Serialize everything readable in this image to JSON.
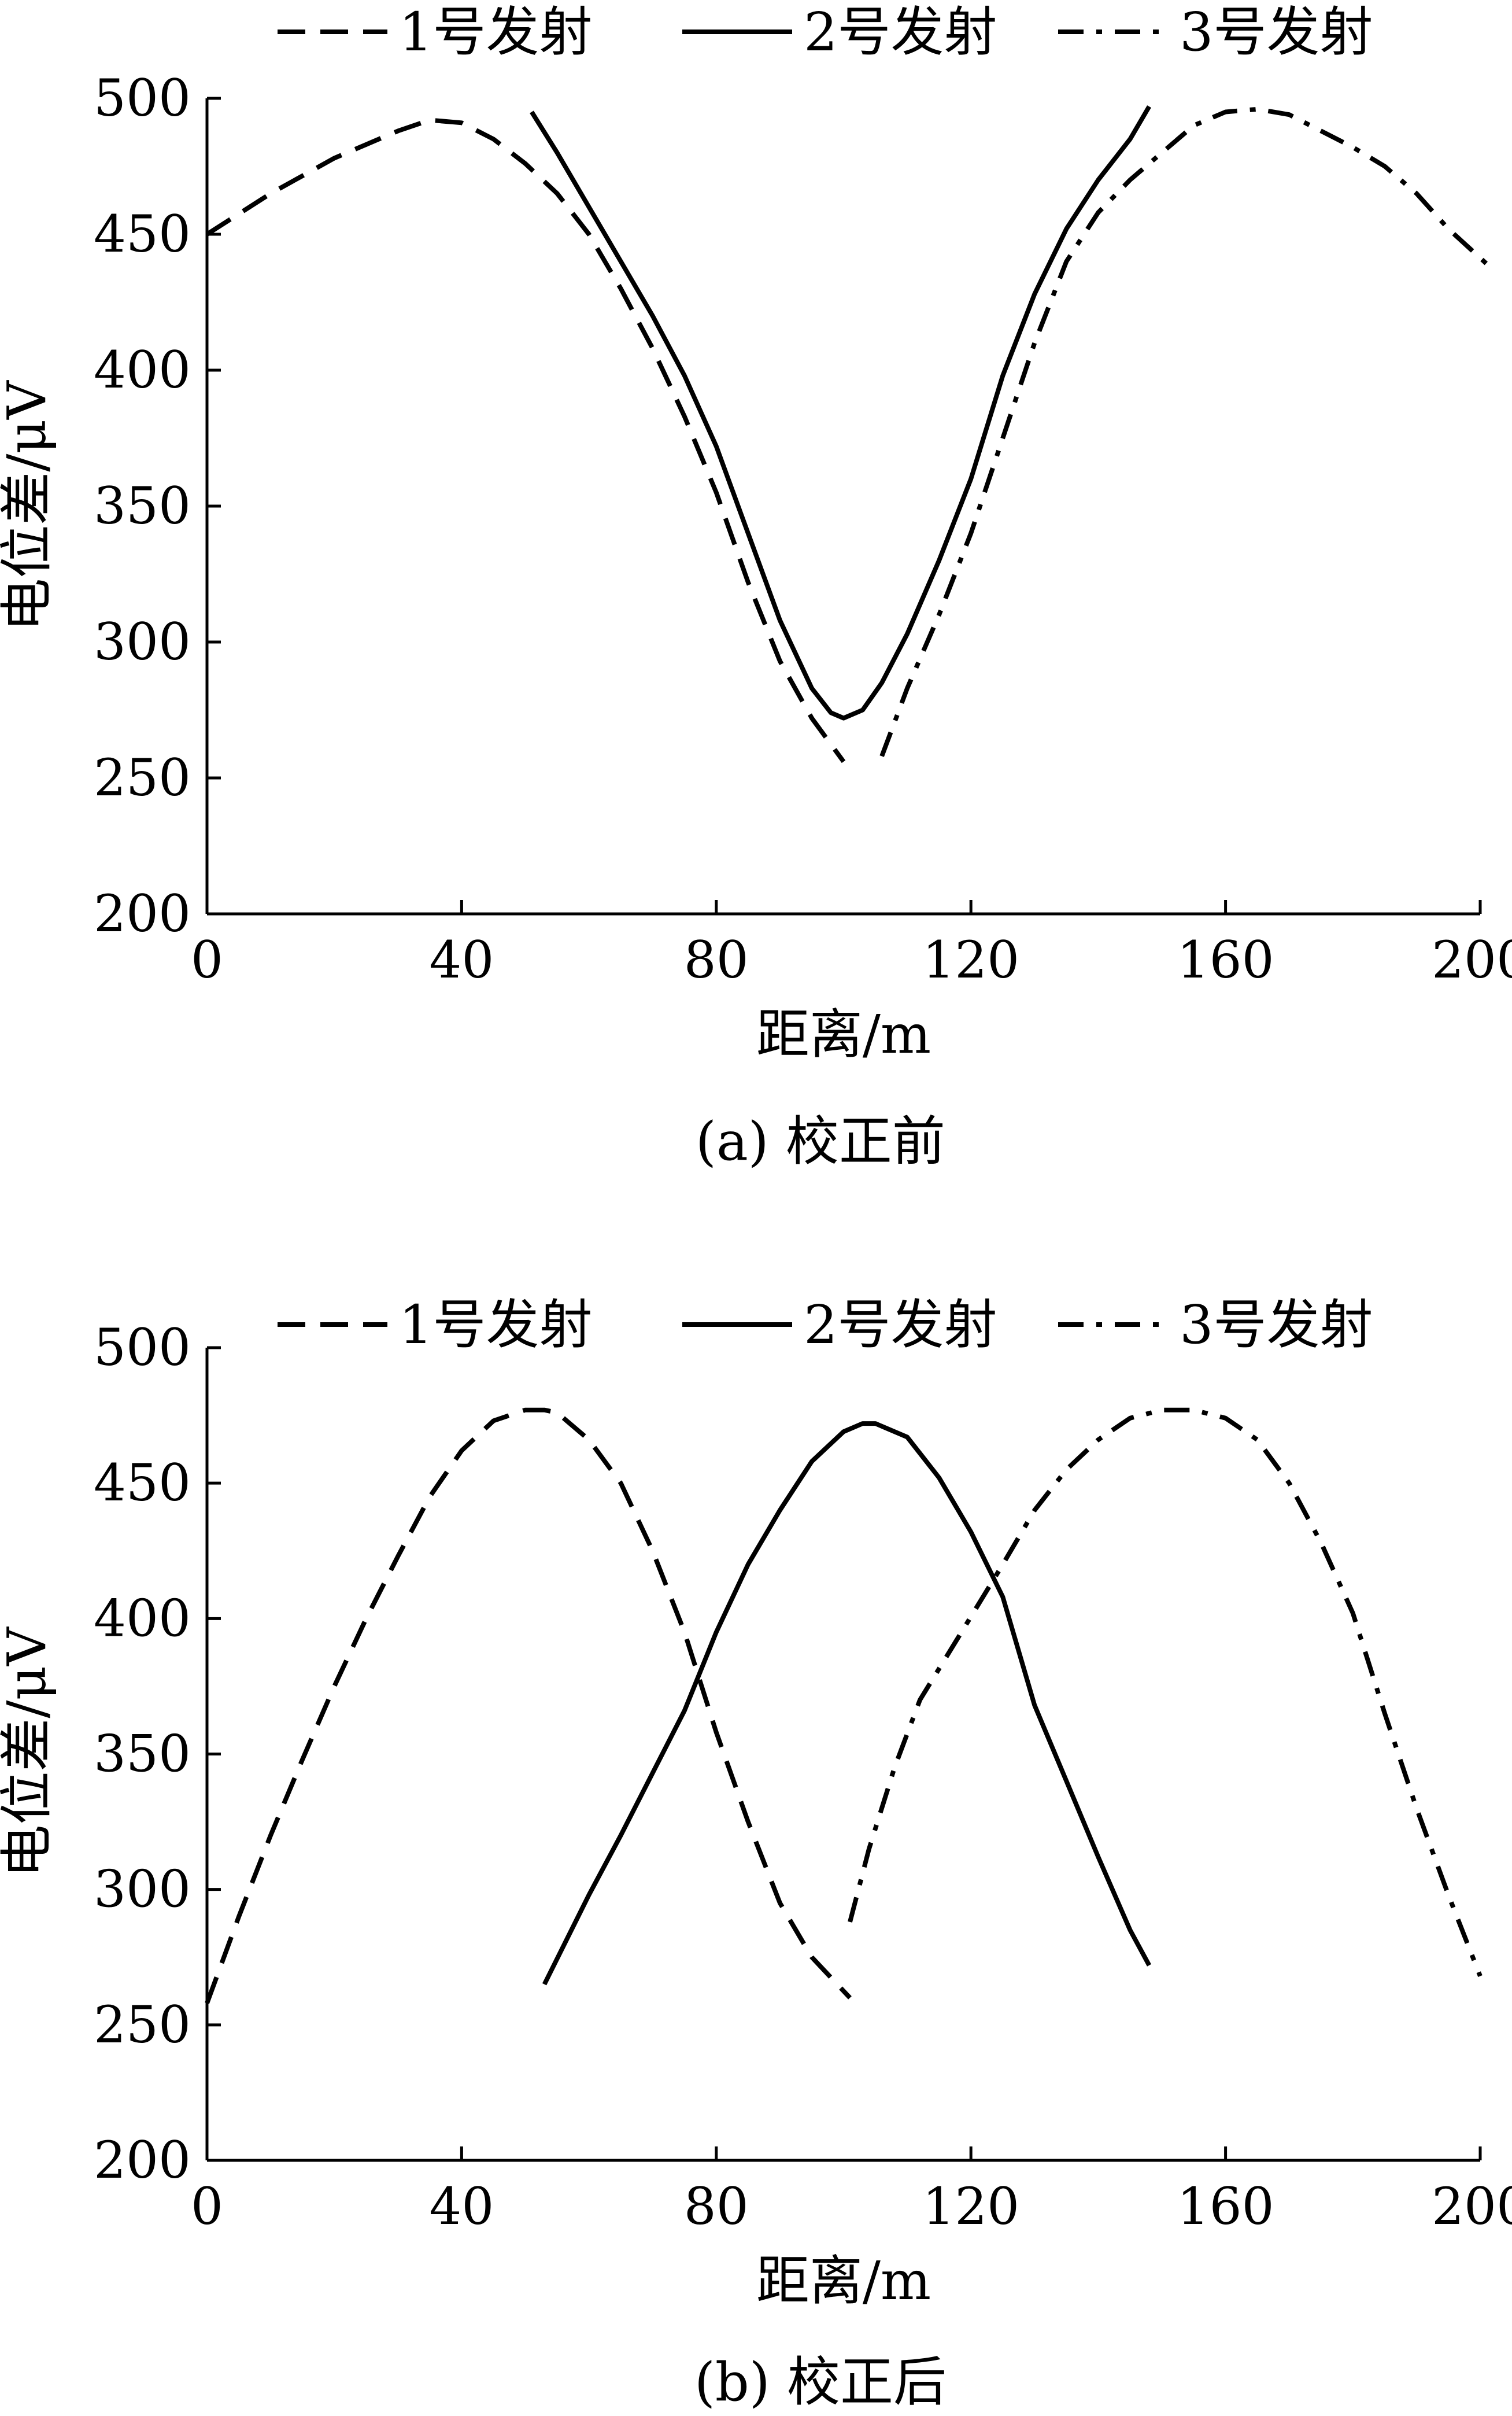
{
  "legend": [
    "1号发射",
    "2号发射",
    "3号发射"
  ],
  "series_styles": [
    "dashed",
    "solid",
    "dashdot"
  ],
  "line_color": "#000000",
  "chart_data": [
    {
      "type": "line",
      "caption": "(a)  校正前",
      "xlabel": "距离/m",
      "ylabel": "电位差/μV",
      "xlim": [
        0,
        200
      ],
      "ylim": [
        200,
        500
      ],
      "xticks": [
        0,
        40,
        80,
        120,
        160,
        200
      ],
      "yticks": [
        200,
        250,
        300,
        350,
        400,
        450,
        500
      ],
      "grid": false,
      "legend_position": "top",
      "series": [
        {
          "name": "1号发射",
          "x": [
            0,
            10,
            20,
            30,
            35,
            40,
            45,
            50,
            55,
            60,
            65,
            70,
            75,
            80,
            85,
            90,
            95,
            100
          ],
          "y": [
            450,
            465,
            478,
            488,
            492,
            491,
            485,
            476,
            465,
            450,
            430,
            408,
            383,
            355,
            322,
            293,
            272,
            256
          ]
        },
        {
          "name": "2号发射",
          "x": [
            51,
            55,
            60,
            65,
            70,
            75,
            80,
            85,
            90,
            95,
            98,
            100,
            103,
            106,
            110,
            115,
            120,
            125,
            130,
            135,
            140,
            145,
            148
          ],
          "y": [
            495,
            480,
            460,
            440,
            420,
            398,
            372,
            340,
            308,
            283,
            274,
            272,
            275,
            285,
            303,
            330,
            360,
            398,
            428,
            452,
            470,
            485,
            497
          ]
        },
        {
          "name": "3号发射",
          "x": [
            106,
            110,
            115,
            120,
            125,
            130,
            135,
            140,
            145,
            150,
            155,
            160,
            165,
            170,
            175,
            180,
            185,
            190,
            195,
            202
          ],
          "y": [
            258,
            283,
            310,
            340,
            375,
            410,
            440,
            458,
            470,
            480,
            490,
            495,
            496,
            494,
            488,
            482,
            475,
            465,
            452,
            437
          ]
        }
      ]
    },
    {
      "type": "line",
      "caption": "(b)  校正后",
      "xlabel": "距离/m",
      "ylabel": "电位差/μV",
      "xlim": [
        0,
        200
      ],
      "ylim": [
        200,
        500
      ],
      "xticks": [
        0,
        40,
        80,
        120,
        160,
        200
      ],
      "yticks": [
        200,
        250,
        300,
        350,
        400,
        450,
        500
      ],
      "grid": false,
      "legend_position": "top",
      "series": [
        {
          "name": "1号发射",
          "x": [
            0,
            5,
            10,
            15,
            20,
            25,
            30,
            35,
            40,
            45,
            50,
            53,
            55,
            60,
            65,
            70,
            75,
            80,
            85,
            90,
            95,
            101
          ],
          "y": [
            258,
            290,
            320,
            348,
            375,
            400,
            423,
            445,
            462,
            473,
            477,
            477,
            476,
            466,
            450,
            425,
            395,
            358,
            325,
            295,
            275,
            260
          ]
        },
        {
          "name": "2号发射",
          "x": [
            53,
            60,
            65,
            70,
            75,
            80,
            85,
            90,
            95,
            100,
            103,
            105,
            110,
            115,
            120,
            125,
            130,
            135,
            140,
            145,
            148
          ],
          "y": [
            265,
            298,
            320,
            343,
            366,
            395,
            420,
            440,
            458,
            469,
            472,
            472,
            467,
            452,
            432,
            408,
            368,
            340,
            312,
            285,
            272
          ]
        },
        {
          "name": "3号发射",
          "x": [
            101,
            104,
            108,
            112,
            118,
            125,
            130,
            135,
            140,
            145,
            150,
            155,
            160,
            165,
            170,
            175,
            180,
            185,
            190,
            195,
            200
          ],
          "y": [
            288,
            315,
            345,
            370,
            393,
            420,
            440,
            455,
            466,
            474,
            477,
            477,
            474,
            466,
            450,
            428,
            402,
            365,
            330,
            298,
            268
          ]
        }
      ]
    }
  ]
}
